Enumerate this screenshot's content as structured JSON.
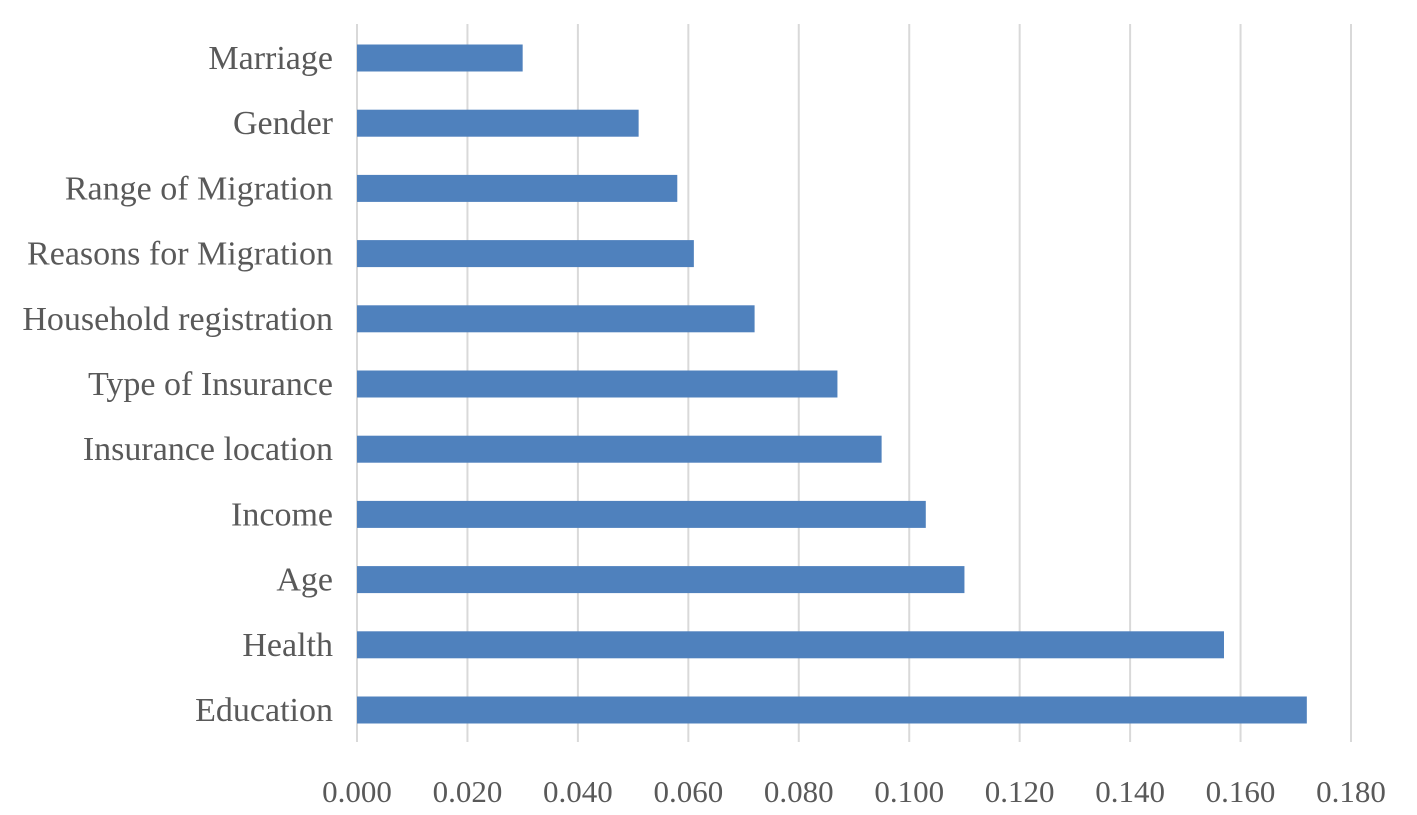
{
  "chart_data": {
    "type": "bar",
    "orientation": "horizontal",
    "categories": [
      "Marriage",
      "Gender",
      "Range of Migration",
      "Reasons for Migration",
      "Household registration",
      "Type of Insurance",
      "Insurance location",
      "Income",
      "Age",
      "Health",
      "Education"
    ],
    "values": [
      0.03,
      0.051,
      0.058,
      0.061,
      0.072,
      0.087,
      0.095,
      0.103,
      0.11,
      0.157,
      0.172
    ],
    "xticks": [
      "0.000",
      "0.020",
      "0.040",
      "0.060",
      "0.080",
      "0.100",
      "0.120",
      "0.140",
      "0.160",
      "0.180"
    ],
    "xlim": [
      0,
      0.18
    ],
    "title": "",
    "xlabel": "",
    "ylabel": "",
    "grid": "vertical",
    "legend": "none",
    "colors": {
      "bar": "#4f81bd",
      "grid": "#d9d9d9",
      "text": "#595959"
    }
  }
}
